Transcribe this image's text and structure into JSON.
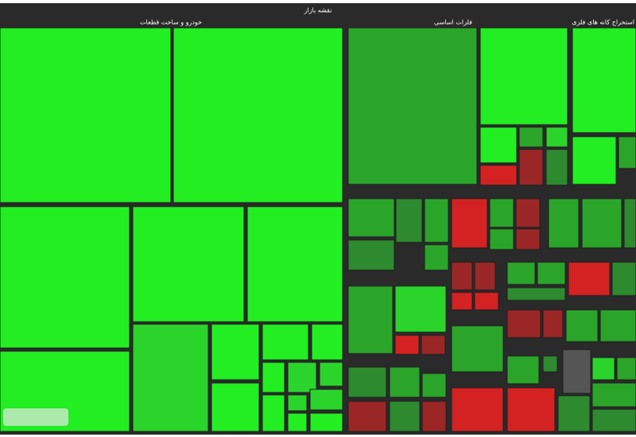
{
  "header": {
    "title": "نقشه بازار"
  },
  "groups": [
    {
      "name": "خودرو و ساخت قطعات"
    },
    {
      "name": "فلزات اساسی"
    },
    {
      "name": "استخراج کانه های فلزی"
    }
  ]
}
